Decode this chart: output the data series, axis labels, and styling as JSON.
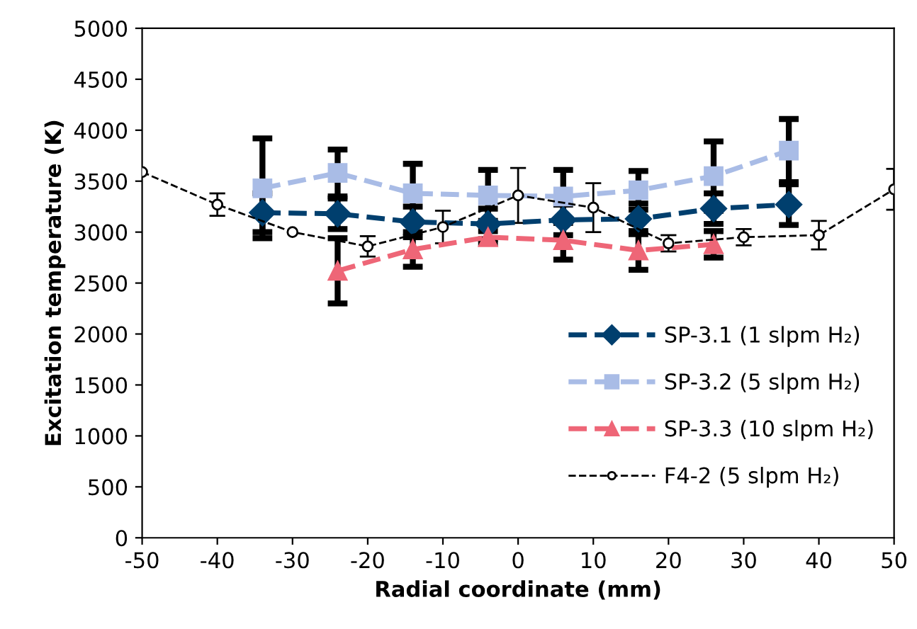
{
  "chart_data": {
    "type": "line",
    "xlabel": "Radial coordinate (mm)",
    "ylabel": "Excitation temperature (K)",
    "xlim": [
      -50,
      50
    ],
    "xticks": [
      -50,
      -40,
      -30,
      -20,
      -10,
      0,
      10,
      20,
      30,
      40,
      50
    ],
    "ylim": [
      0,
      5000
    ],
    "yticks": [
      0,
      500,
      1000,
      1500,
      2000,
      2500,
      3000,
      3500,
      4000,
      4500,
      5000
    ],
    "grid": false,
    "legend": "bottom right",
    "line_style": "dashed",
    "series": [
      {
        "name": "SP-3.1 (1 slpm H₂)",
        "color": "#003f6e",
        "marker": "diamond",
        "x": [
          -34,
          -24,
          -14,
          -4,
          6,
          16,
          26,
          36
        ],
        "values": [
          3190,
          3180,
          3100,
          3080,
          3120,
          3130,
          3230,
          3270
        ],
        "errors": [
          190,
          150,
          150,
          150,
          150,
          150,
          150,
          200
        ]
      },
      {
        "name": "SP-3.2 (5 slpm H₂)",
        "color": "#a9bce6",
        "marker": "square",
        "x": [
          -34,
          -24,
          -14,
          -4,
          6,
          16,
          26,
          36
        ],
        "values": [
          3430,
          3580,
          3380,
          3360,
          3350,
          3410,
          3550,
          3800
        ],
        "errors": [
          490,
          230,
          290,
          250,
          260,
          190,
          340,
          310
        ]
      },
      {
        "name": "SP-3.3 (10 slpm H₂)",
        "color": "#ee6677",
        "marker": "triangle",
        "x": [
          -24,
          -14,
          -4,
          6,
          16,
          26
        ],
        "values": [
          2620,
          2830,
          2950,
          2920,
          2820,
          2880
        ],
        "errors": [
          320,
          170,
          60,
          190,
          190,
          130
        ]
      },
      {
        "name": "F4-2 (5 slpm H₂)",
        "color": "#000000",
        "marker": "circle",
        "x": [
          -50,
          -40,
          -30,
          -20,
          -10,
          0,
          10,
          20,
          30,
          40,
          50
        ],
        "values": [
          3590,
          3270,
          3000,
          2860,
          3050,
          3360,
          3240,
          2890,
          2950,
          2970,
          3420
        ],
        "errors": [
          null,
          110,
          null,
          100,
          160,
          270,
          240,
          80,
          80,
          140,
          200
        ]
      }
    ]
  }
}
